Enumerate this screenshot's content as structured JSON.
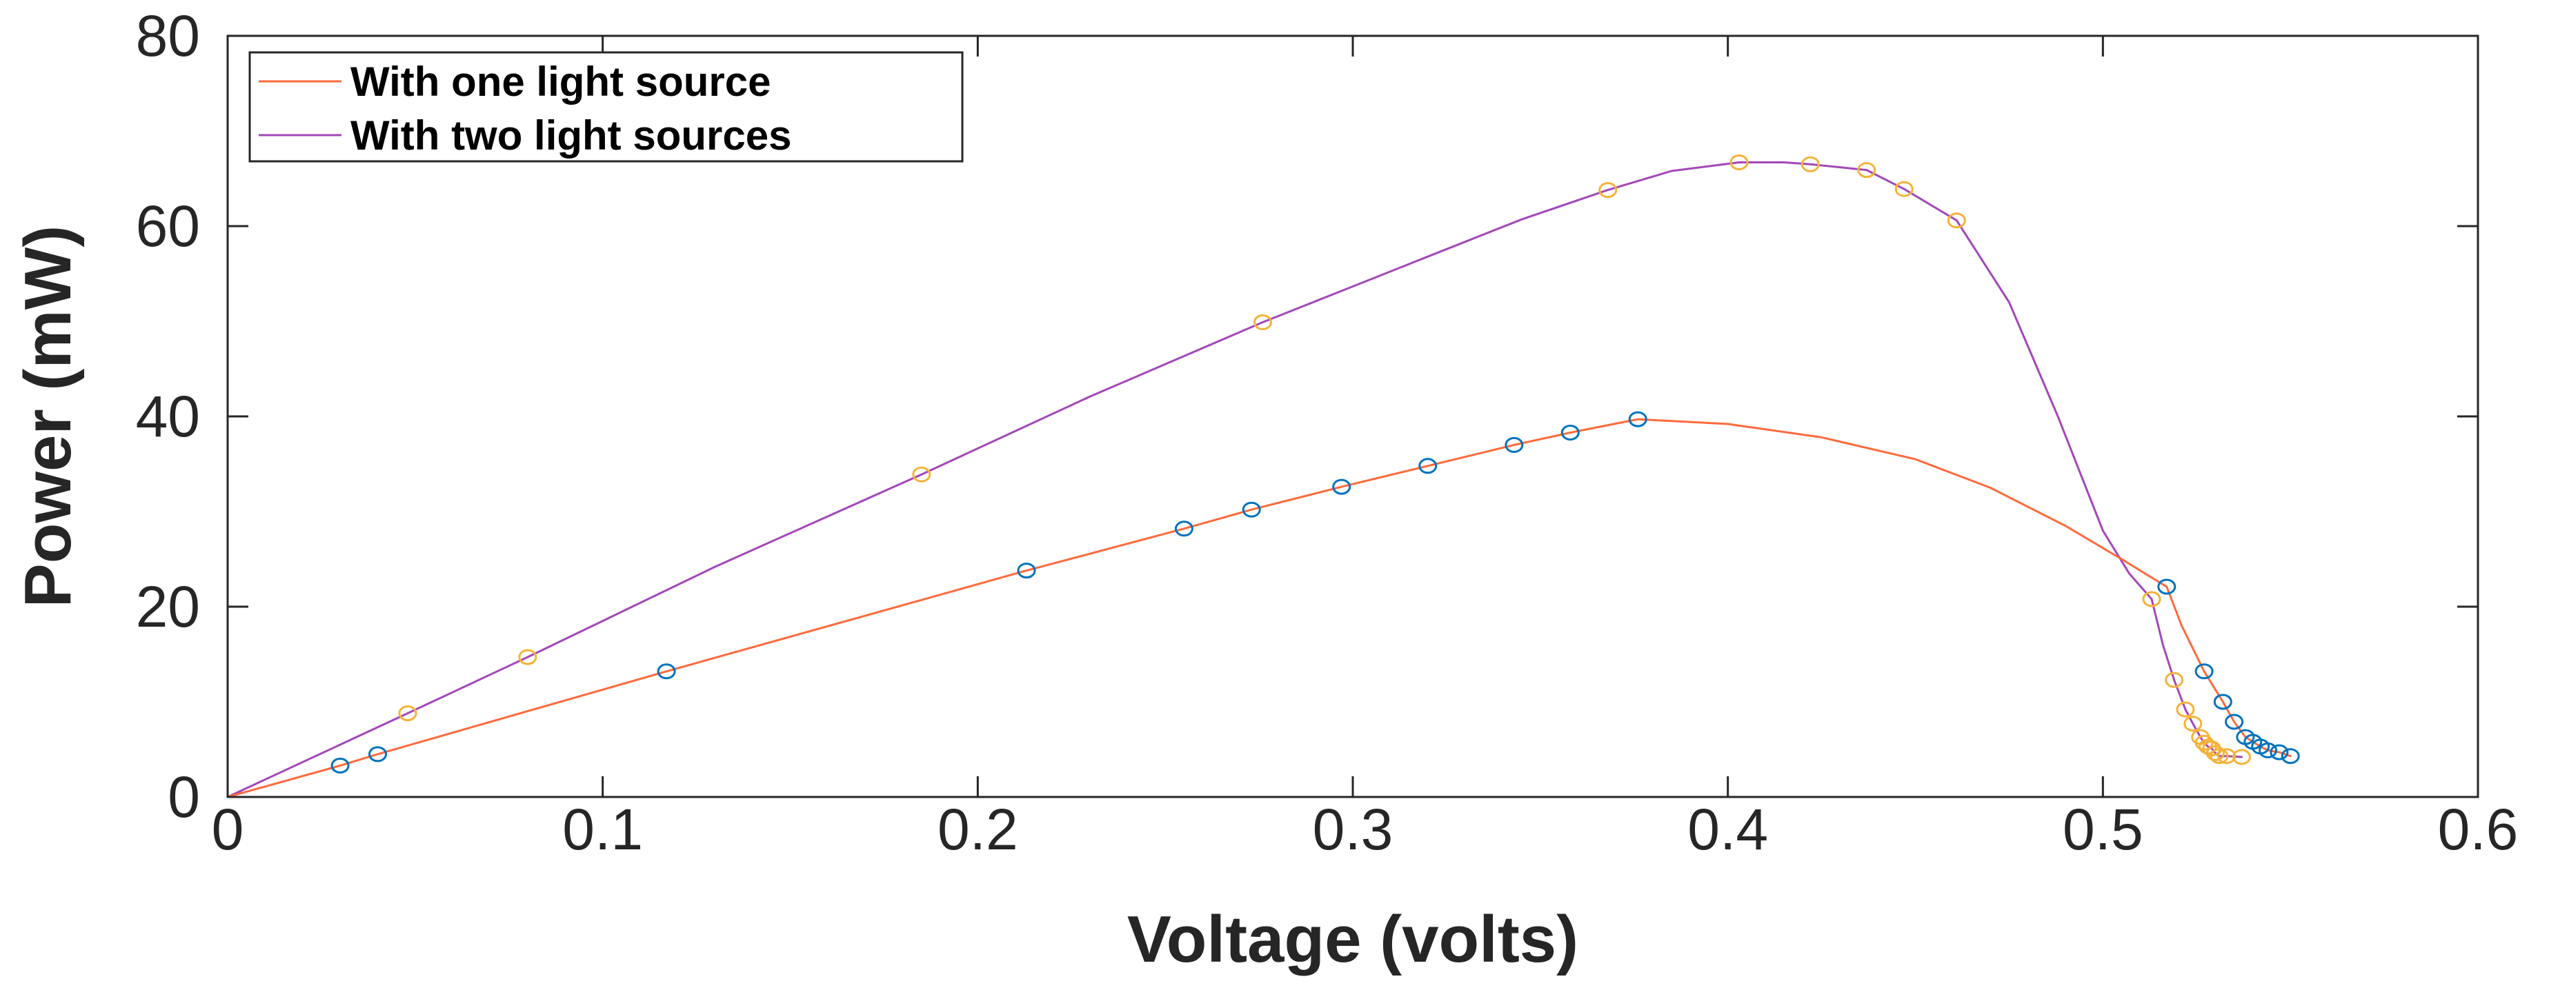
{
  "chart_data": {
    "type": "line",
    "title": "",
    "xlabel": "Voltage (volts)",
    "ylabel": "Power (mW)",
    "xlim": [
      0,
      0.6
    ],
    "ylim": [
      0,
      80
    ],
    "xticks": [
      0,
      0.1,
      0.2,
      0.3,
      0.4,
      0.5,
      0.6
    ],
    "xtick_labels": [
      "0",
      "0.1",
      "0.2",
      "0.3",
      "0.4",
      "0.5",
      "0.6"
    ],
    "yticks": [
      0,
      20,
      40,
      60,
      80
    ],
    "ytick_labels": [
      "0",
      "20",
      "40",
      "60",
      "80"
    ],
    "grid": false,
    "legend_position": "top-left",
    "series": [
      {
        "name": "With one light source",
        "line_color": "#FF6A3D",
        "marker_color": "#0072BD",
        "curve": [
          [
            0,
            0
          ],
          [
            0.03,
            3.3
          ],
          [
            0.04,
            4.5
          ],
          [
            0.117,
            13.2
          ],
          [
            0.213,
            23.8
          ],
          [
            0.255,
            28.2
          ],
          [
            0.273,
            30.2
          ],
          [
            0.297,
            32.6
          ],
          [
            0.32,
            34.8
          ],
          [
            0.343,
            37.0
          ],
          [
            0.358,
            38.3
          ],
          [
            0.376,
            39.7
          ],
          [
            0.4,
            39.2
          ],
          [
            0.425,
            37.8
          ],
          [
            0.45,
            35.5
          ],
          [
            0.47,
            32.5
          ],
          [
            0.49,
            28.5
          ],
          [
            0.505,
            25.0
          ],
          [
            0.512,
            23.3
          ],
          [
            0.517,
            22.1
          ],
          [
            0.521,
            18.0
          ],
          [
            0.527,
            13.2
          ],
          [
            0.532,
            10.0
          ],
          [
            0.535,
            7.9
          ],
          [
            0.538,
            6.3
          ],
          [
            0.54,
            5.8
          ],
          [
            0.542,
            5.3
          ],
          [
            0.544,
            4.9
          ],
          [
            0.547,
            4.7
          ],
          [
            0.55,
            4.3
          ]
        ],
        "markers": [
          [
            0.03,
            3.3
          ],
          [
            0.04,
            4.5
          ],
          [
            0.117,
            13.2
          ],
          [
            0.213,
            23.8
          ],
          [
            0.255,
            28.2
          ],
          [
            0.273,
            30.2
          ],
          [
            0.297,
            32.6
          ],
          [
            0.32,
            34.8
          ],
          [
            0.343,
            37.0
          ],
          [
            0.358,
            38.3
          ],
          [
            0.376,
            39.7
          ],
          [
            0.517,
            22.1
          ],
          [
            0.527,
            13.2
          ],
          [
            0.532,
            10.0
          ],
          [
            0.535,
            7.9
          ],
          [
            0.538,
            6.3
          ],
          [
            0.54,
            5.8
          ],
          [
            0.542,
            5.3
          ],
          [
            0.544,
            4.9
          ],
          [
            0.547,
            4.7
          ],
          [
            0.55,
            4.3
          ]
        ]
      },
      {
        "name": "With two light sources",
        "line_color": "#A347B8",
        "marker_color": "#F5B23A",
        "curve": [
          [
            0,
            0
          ],
          [
            0.048,
            8.8
          ],
          [
            0.08,
            14.7
          ],
          [
            0.13,
            24.2
          ],
          [
            0.185,
            33.9
          ],
          [
            0.23,
            42.1
          ],
          [
            0.276,
            49.9
          ],
          [
            0.32,
            56.8
          ],
          [
            0.345,
            60.7
          ],
          [
            0.368,
            63.8
          ],
          [
            0.385,
            65.8
          ],
          [
            0.403,
            66.7
          ],
          [
            0.415,
            66.7
          ],
          [
            0.422,
            66.5
          ],
          [
            0.437,
            65.9
          ],
          [
            0.447,
            63.9
          ],
          [
            0.461,
            60.6
          ],
          [
            0.475,
            52.0
          ],
          [
            0.488,
            40.0
          ],
          [
            0.5,
            28.0
          ],
          [
            0.507,
            23.5
          ],
          [
            0.513,
            20.8
          ],
          [
            0.516,
            16.0
          ],
          [
            0.519,
            12.3
          ],
          [
            0.522,
            9.2
          ],
          [
            0.524,
            7.7
          ],
          [
            0.526,
            6.3
          ],
          [
            0.527,
            5.7
          ],
          [
            0.528,
            5.3
          ],
          [
            0.529,
            5.1
          ],
          [
            0.53,
            4.6
          ],
          [
            0.531,
            4.3
          ],
          [
            0.533,
            4.3
          ],
          [
            0.537,
            4.2
          ]
        ],
        "markers": [
          [
            0.048,
            8.8
          ],
          [
            0.08,
            14.7
          ],
          [
            0.185,
            33.9
          ],
          [
            0.276,
            49.9
          ],
          [
            0.368,
            63.8
          ],
          [
            0.403,
            66.7
          ],
          [
            0.422,
            66.5
          ],
          [
            0.437,
            65.9
          ],
          [
            0.447,
            63.9
          ],
          [
            0.461,
            60.6
          ],
          [
            0.513,
            20.8
          ],
          [
            0.519,
            12.3
          ],
          [
            0.522,
            9.2
          ],
          [
            0.524,
            7.7
          ],
          [
            0.526,
            6.3
          ],
          [
            0.527,
            5.7
          ],
          [
            0.528,
            5.3
          ],
          [
            0.529,
            5.1
          ],
          [
            0.53,
            4.6
          ],
          [
            0.531,
            4.3
          ],
          [
            0.533,
            4.3
          ],
          [
            0.537,
            4.2
          ]
        ]
      }
    ]
  }
}
